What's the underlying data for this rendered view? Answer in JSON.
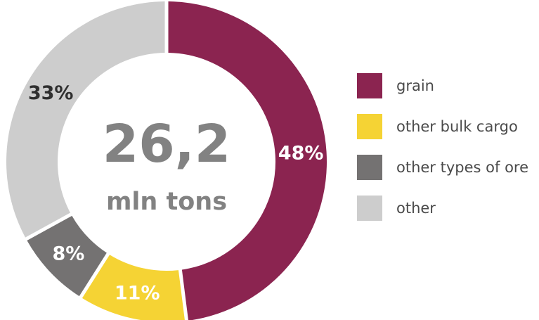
{
  "chart_data": {
    "type": "pie",
    "center": {
      "value": "26,2",
      "unit": "mln tons"
    },
    "slices": [
      {
        "name": "grain",
        "value": 48,
        "label": "48%",
        "color": "#8b2450",
        "label_color": "#ffffff"
      },
      {
        "name": "other bulk cargo",
        "value": 11,
        "label": "11%",
        "color": "#f5d334",
        "label_color": "#ffffff"
      },
      {
        "name": "other types of ore",
        "value": 8,
        "label": "8%",
        "color": "#747272",
        "label_color": "#ffffff"
      },
      {
        "name": "other",
        "value": 33,
        "label": "33%",
        "color": "#cdcdcd",
        "label_color": "#2f2f2f"
      }
    ],
    "legend": [
      {
        "label": "grain",
        "color": "#8b2450"
      },
      {
        "label": "other bulk cargo",
        "color": "#f5d334"
      },
      {
        "label": "other types of ore",
        "color": "#747272"
      },
      {
        "label": "other",
        "color": "#cdcdcd"
      }
    ],
    "legend_position": "right"
  }
}
